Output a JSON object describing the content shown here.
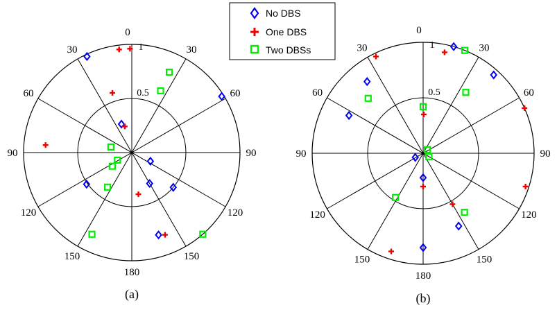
{
  "legend": {
    "items": [
      {
        "label": "No DBS",
        "color": "#0000ee",
        "marker": "diamond-icon"
      },
      {
        "label": "One DBS",
        "color": "#ee0000",
        "marker": "plus-icon"
      },
      {
        "label": "Two DBSs",
        "color": "#00ee00",
        "marker": "square-icon"
      }
    ]
  },
  "chart_data": [
    {
      "type": "scatter",
      "caption": "(a)",
      "polar": true,
      "angle_unit": "degrees",
      "angle_ticks": [
        "0",
        "30",
        "60",
        "90",
        "120",
        "150",
        "180",
        "150",
        "120",
        "90",
        "60",
        "30"
      ],
      "radius_ticks": [
        "0.5",
        "1"
      ],
      "rlim": [
        0,
        1
      ],
      "series": [
        {
          "name": "No DBS",
          "color": "#0000ee",
          "points": [
            {
              "theta": -25,
              "r": 0.98
            },
            {
              "theta": 58,
              "r": 0.98
            },
            {
              "theta": -20,
              "r": 0.28
            },
            {
              "theta": 162,
              "r": 0.8
            },
            {
              "theta": 130,
              "r": 0.5
            },
            {
              "theta": -125,
              "r": 0.51
            },
            {
              "theta": 150,
              "r": 0.33
            },
            {
              "theta": 115,
              "r": 0.19
            }
          ]
        },
        {
          "name": "One DBS",
          "color": "#ee0000",
          "points": [
            {
              "theta": -7,
              "r": 0.96
            },
            {
              "theta": -1,
              "r": 0.96
            },
            {
              "theta": -85,
              "r": 0.8
            },
            {
              "theta": -18,
              "r": 0.58
            },
            {
              "theta": -15,
              "r": 0.25
            },
            {
              "theta": 158,
              "r": 0.82
            },
            {
              "theta": 171,
              "r": 0.39
            }
          ]
        },
        {
          "name": "Two DBSs",
          "color": "#00ee00",
          "points": [
            {
              "theta": 25,
              "r": 0.82
            },
            {
              "theta": 25,
              "r": 0.63
            },
            {
              "theta": -75,
              "r": 0.2
            },
            {
              "theta": -125,
              "r": 0.22
            },
            {
              "theta": -118,
              "r": 0.15
            },
            {
              "theta": -145,
              "r": 0.39
            },
            {
              "theta": -154,
              "r": 0.84
            },
            {
              "theta": 139,
              "r": 1.0
            }
          ]
        }
      ]
    },
    {
      "type": "scatter",
      "caption": "(b)",
      "polar": true,
      "angle_unit": "degrees",
      "angle_ticks": [
        "0",
        "30",
        "60",
        "90",
        "120",
        "150",
        "180",
        "150",
        "120",
        "90",
        "60",
        "30"
      ],
      "radius_ticks": [
        "0.5",
        "1"
      ],
      "rlim": [
        0,
        1
      ],
      "series": [
        {
          "name": "No DBS",
          "color": "#0000ee",
          "points": [
            {
              "theta": 16,
              "r": 1.0
            },
            {
              "theta": 42,
              "r": 0.95
            },
            {
              "theta": -38,
              "r": 0.82
            },
            {
              "theta": -63,
              "r": 0.75
            },
            {
              "theta": -118,
              "r": 0.08
            },
            {
              "theta": 180,
              "r": 0.22
            },
            {
              "theta": 180,
              "r": 0.85
            },
            {
              "theta": 154,
              "r": 0.73
            }
          ]
        },
        {
          "name": "One DBS",
          "color": "#ee0000",
          "points": [
            {
              "theta": 12,
              "r": 0.93
            },
            {
              "theta": -26,
              "r": 0.97
            },
            {
              "theta": 66,
              "r": 1.0
            },
            {
              "theta": 180,
              "r": 0.3
            },
            {
              "theta": 108,
              "r": 0.97
            },
            {
              "theta": 150,
              "r": 0.53
            },
            {
              "theta": -162,
              "r": 0.93
            },
            {
              "theta": 1,
              "r": 0.35
            }
          ]
        },
        {
          "name": "Two DBSs",
          "color": "#00ee00",
          "points": [
            {
              "theta": 22,
              "r": 1.0
            },
            {
              "theta": -45,
              "r": 0.7
            },
            {
              "theta": 35,
              "r": 0.67
            },
            {
              "theta": 0,
              "r": 0.42
            },
            {
              "theta": 50,
              "r": 0.05
            },
            {
              "theta": 120,
              "r": 0.06
            },
            {
              "theta": -148,
              "r": 0.47
            },
            {
              "theta": 145,
              "r": 0.65
            }
          ]
        }
      ]
    }
  ]
}
